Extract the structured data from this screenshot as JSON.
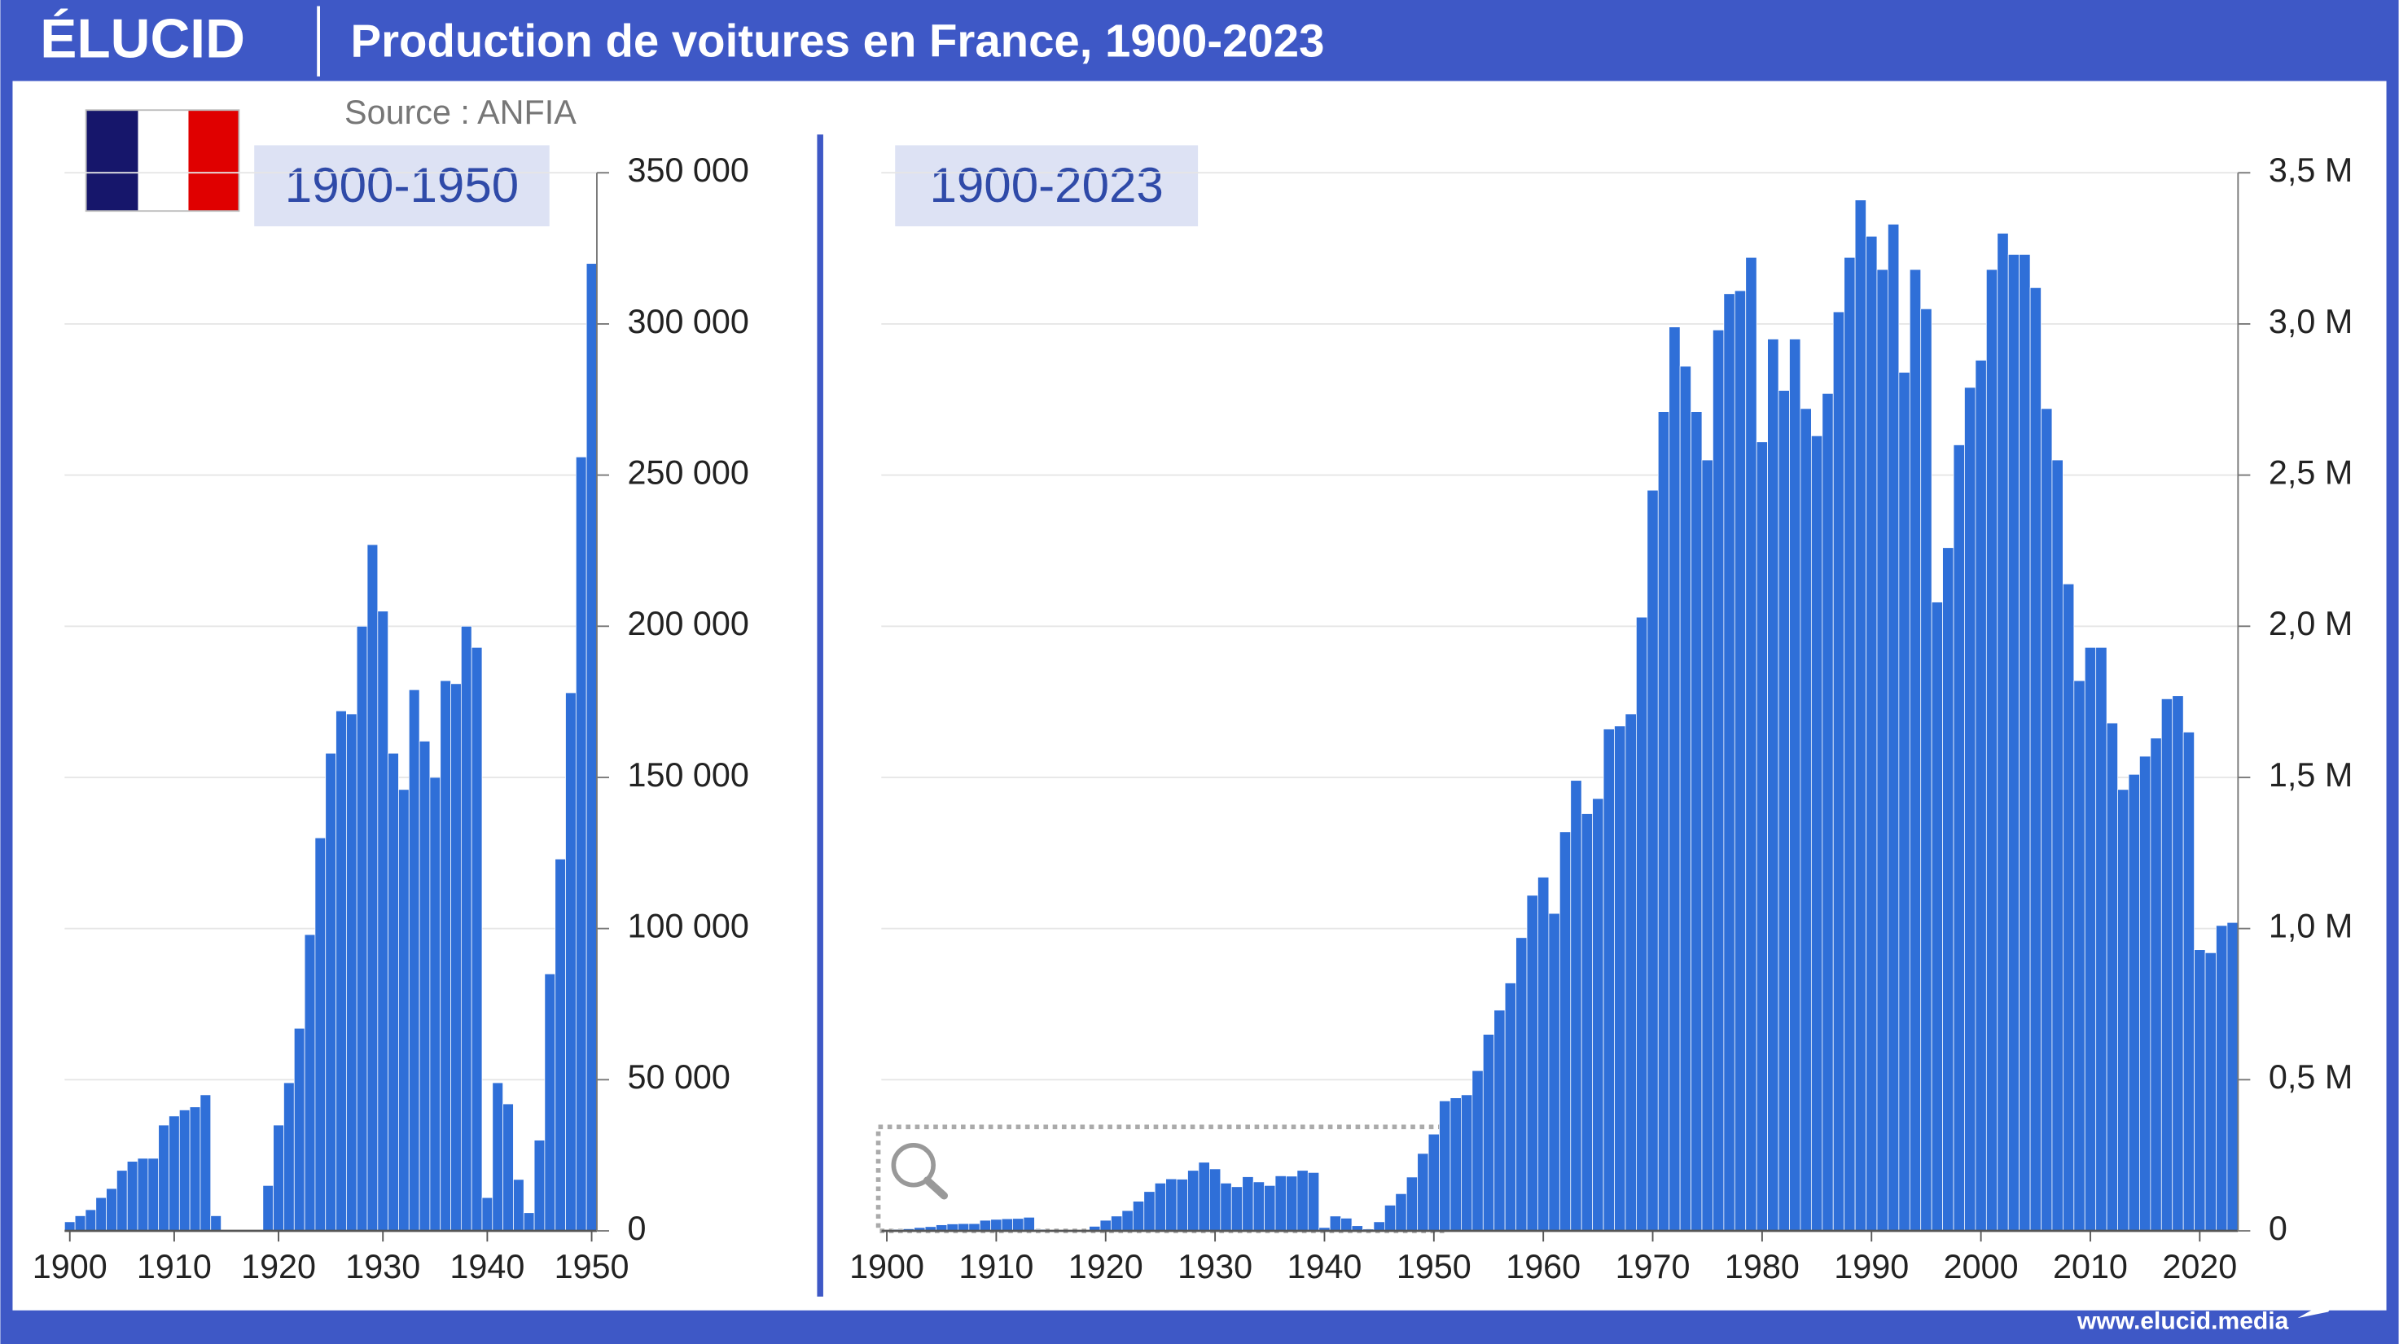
{
  "header": {
    "logo": "ÉLUCID",
    "title": "Production de voitures en France, 1900-2023",
    "source": "Source : ANFIA",
    "footer": "www.elucid.media"
  },
  "chart_data": [
    {
      "type": "bar",
      "subtitle": "1900-1950",
      "color": "#2f6fd8",
      "grid": true,
      "x": [
        1900,
        1901,
        1902,
        1903,
        1904,
        1905,
        1906,
        1907,
        1908,
        1909,
        1910,
        1911,
        1912,
        1913,
        1914,
        1915,
        1916,
        1917,
        1918,
        1919,
        1920,
        1921,
        1922,
        1923,
        1924,
        1925,
        1926,
        1927,
        1928,
        1929,
        1930,
        1931,
        1932,
        1933,
        1934,
        1935,
        1936,
        1937,
        1938,
        1939,
        1940,
        1941,
        1942,
        1943,
        1944,
        1945,
        1946,
        1947,
        1948,
        1949,
        1950
      ],
      "values": [
        3000,
        5000,
        7000,
        11000,
        14000,
        20000,
        23000,
        24000,
        24000,
        35000,
        38000,
        40000,
        41000,
        45000,
        5000,
        0,
        0,
        0,
        0,
        15000,
        35000,
        49000,
        67000,
        98000,
        130000,
        158000,
        172000,
        171000,
        200000,
        227000,
        205000,
        158000,
        146000,
        179000,
        162000,
        150000,
        182000,
        181000,
        200000,
        193000,
        11000,
        49000,
        42000,
        17000,
        6000,
        30000,
        85000,
        123000,
        178000,
        256000,
        320000
      ],
      "xlim": [
        1899.5,
        1950.5
      ],
      "xticks": [
        1900,
        1910,
        1920,
        1930,
        1940,
        1950
      ],
      "ylim": [
        0,
        350000
      ],
      "yticks": [
        0,
        {
          "value": 50000,
          "label": "50 000"
        },
        {
          "value": 100000,
          "label": "100 000"
        },
        {
          "value": 150000,
          "label": "150 000"
        },
        {
          "value": 200000,
          "label": "200 000"
        },
        {
          "value": 250000,
          "label": "250 000"
        },
        {
          "value": 300000,
          "label": "300 000"
        },
        {
          "value": 350000,
          "label": "350 000"
        }
      ]
    },
    {
      "type": "bar",
      "subtitle": "1900-2023",
      "color": "#2f6fd8",
      "grid": true,
      "x": [
        1900,
        1901,
        1902,
        1903,
        1904,
        1905,
        1906,
        1907,
        1908,
        1909,
        1910,
        1911,
        1912,
        1913,
        1914,
        1915,
        1916,
        1917,
        1918,
        1919,
        1920,
        1921,
        1922,
        1923,
        1924,
        1925,
        1926,
        1927,
        1928,
        1929,
        1930,
        1931,
        1932,
        1933,
        1934,
        1935,
        1936,
        1937,
        1938,
        1939,
        1940,
        1941,
        1942,
        1943,
        1944,
        1945,
        1946,
        1947,
        1948,
        1949,
        1950,
        1951,
        1952,
        1953,
        1954,
        1955,
        1956,
        1957,
        1958,
        1959,
        1960,
        1961,
        1962,
        1963,
        1964,
        1965,
        1966,
        1967,
        1968,
        1969,
        1970,
        1971,
        1972,
        1973,
        1974,
        1975,
        1976,
        1977,
        1978,
        1979,
        1980,
        1981,
        1982,
        1983,
        1984,
        1985,
        1986,
        1987,
        1988,
        1989,
        1990,
        1991,
        1992,
        1993,
        1994,
        1995,
        1996,
        1997,
        1998,
        1999,
        2000,
        2001,
        2002,
        2003,
        2004,
        2005,
        2006,
        2007,
        2008,
        2009,
        2010,
        2011,
        2012,
        2013,
        2014,
        2015,
        2016,
        2017,
        2018,
        2019,
        2020,
        2021,
        2022,
        2023
      ],
      "values": [
        0.003,
        0.005,
        0.007,
        0.011,
        0.014,
        0.02,
        0.023,
        0.024,
        0.024,
        0.035,
        0.038,
        0.04,
        0.041,
        0.045,
        0.005,
        0,
        0,
        0,
        0,
        0.015,
        0.035,
        0.049,
        0.067,
        0.098,
        0.13,
        0.158,
        0.172,
        0.171,
        0.2,
        0.227,
        0.205,
        0.158,
        0.146,
        0.179,
        0.162,
        0.15,
        0.182,
        0.181,
        0.2,
        0.193,
        0.011,
        0.049,
        0.042,
        0.017,
        0.006,
        0.03,
        0.085,
        0.123,
        0.178,
        0.256,
        0.32,
        0.43,
        0.44,
        0.45,
        0.53,
        0.65,
        0.73,
        0.82,
        0.97,
        1.11,
        1.17,
        1.05,
        1.32,
        1.49,
        1.38,
        1.43,
        1.66,
        1.67,
        1.71,
        2.03,
        2.45,
        2.71,
        2.99,
        2.86,
        2.71,
        2.55,
        2.98,
        3.1,
        3.11,
        3.22,
        2.61,
        2.95,
        2.78,
        2.95,
        2.72,
        2.63,
        2.77,
        3.04,
        3.22,
        3.41,
        3.29,
        3.18,
        3.33,
        2.84,
        3.18,
        3.05,
        2.08,
        2.26,
        2.6,
        2.79,
        2.88,
        3.18,
        3.3,
        3.23,
        3.23,
        3.12,
        2.72,
        2.55,
        2.14,
        1.82,
        1.93,
        1.93,
        1.68,
        1.46,
        1.51,
        1.57,
        1.63,
        1.76,
        1.77,
        1.65,
        0.93,
        0.92,
        1.01,
        1.02
      ],
      "xlim": [
        1899.5,
        2023.5
      ],
      "xticks": [
        1900,
        1910,
        1920,
        1930,
        1940,
        1950,
        1960,
        1970,
        1980,
        1990,
        2000,
        2010,
        2020
      ],
      "ylim": [
        0,
        3.5
      ],
      "yticks": [
        0,
        {
          "value": 0.5,
          "label": "0,5 M"
        },
        {
          "value": 1,
          "label": "1,0 M"
        },
        {
          "value": 1.5,
          "label": "1,5 M"
        },
        {
          "value": 2,
          "label": "2,0 M"
        },
        {
          "value": 2.5,
          "label": "2,5 M"
        },
        {
          "value": 3,
          "label": "3,0 M"
        },
        {
          "value": 3.5,
          "label": "3,5 M"
        }
      ]
    }
  ]
}
